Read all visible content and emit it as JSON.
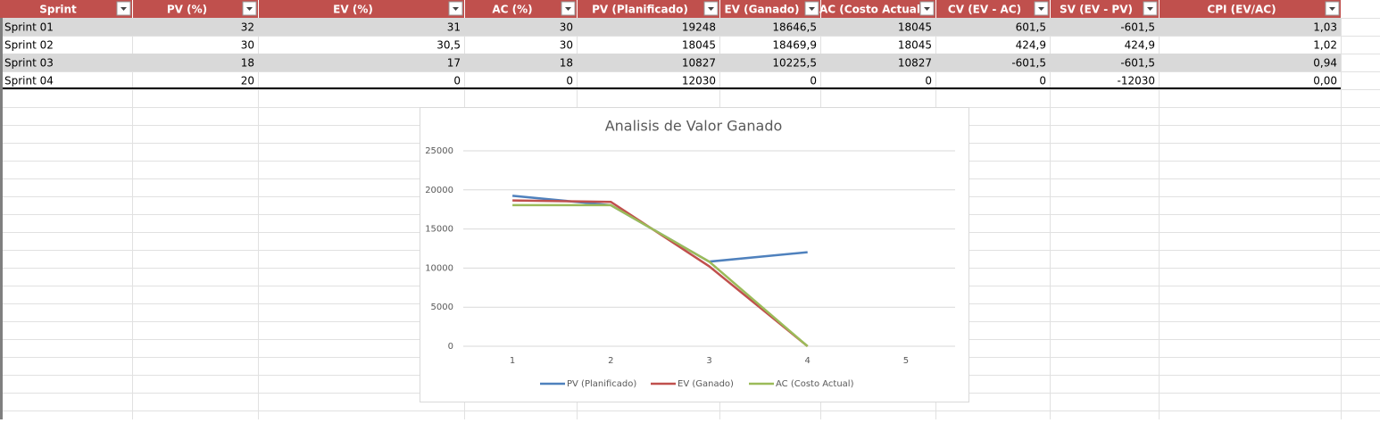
{
  "table": {
    "columns": [
      "Sprint",
      "PV (%)",
      "EV (%)",
      "AC (%)",
      "PV (Planificado)",
      "EV (Ganado)",
      "AC (Costo Actual",
      "CV (EV - AC)",
      "SV (EV - PV)",
      "CPI (EV/AC)"
    ],
    "rows": [
      [
        "Sprint 01",
        "32",
        "31",
        "30",
        "19248",
        "18646,5",
        "18045",
        "601,5",
        "-601,5",
        "1,03"
      ],
      [
        "Sprint 02",
        "30",
        "30,5",
        "30",
        "18045",
        "18469,9",
        "18045",
        "424,9",
        "424,9",
        "1,02"
      ],
      [
        "Sprint 03",
        "18",
        "17",
        "18",
        "10827",
        "10225,5",
        "10827",
        "-601,5",
        "-601,5",
        "0,94"
      ],
      [
        "Sprint 04",
        "20",
        "0",
        "0",
        "12030",
        "0",
        "0",
        "0",
        "-12030",
        "0,00"
      ]
    ]
  },
  "chart_data": {
    "type": "line",
    "title": "Analisis de Valor Ganado",
    "categories": [
      "1",
      "2",
      "3",
      "4",
      "5"
    ],
    "series": [
      {
        "name": "PV (Planificado)",
        "color": "#4f81bd",
        "values": [
          19248,
          18045,
          10827,
          12030,
          null
        ]
      },
      {
        "name": "EV (Ganado)",
        "color": "#c0504d",
        "values": [
          18646.5,
          18469.9,
          10225.5,
          0,
          null
        ]
      },
      {
        "name": "AC (Costo Actual)",
        "color": "#9bbb59",
        "values": [
          18045,
          18045,
          10827,
          0,
          null
        ]
      }
    ],
    "ylim": [
      0,
      25000
    ],
    "yticks": [
      0,
      5000,
      10000,
      15000,
      20000,
      25000
    ],
    "grid": true,
    "legend": "bottom"
  }
}
